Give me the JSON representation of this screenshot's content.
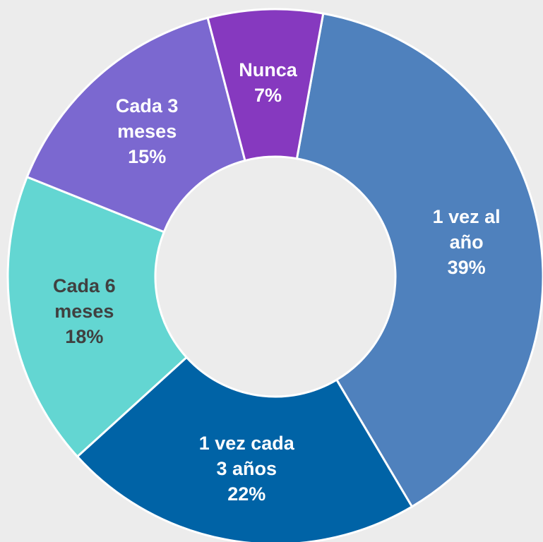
{
  "chart_data": {
    "type": "donut",
    "categories": [
      "1 vez al año",
      "1 vez cada 3 años",
      "Cada 6 meses",
      "Cada 3 meses",
      "Nunca"
    ],
    "values": [
      39,
      22,
      18,
      15,
      7
    ],
    "value_labels": [
      "39%",
      "22%",
      "18%",
      "15%",
      "7%"
    ],
    "colors": [
      "#4f81bd",
      "#0063a6",
      "#63d6d2",
      "#7b68d0",
      "#8639bf"
    ],
    "label_colors": [
      "#ffffff",
      "#ffffff",
      "#404040",
      "#ffffff",
      "#ffffff"
    ]
  }
}
